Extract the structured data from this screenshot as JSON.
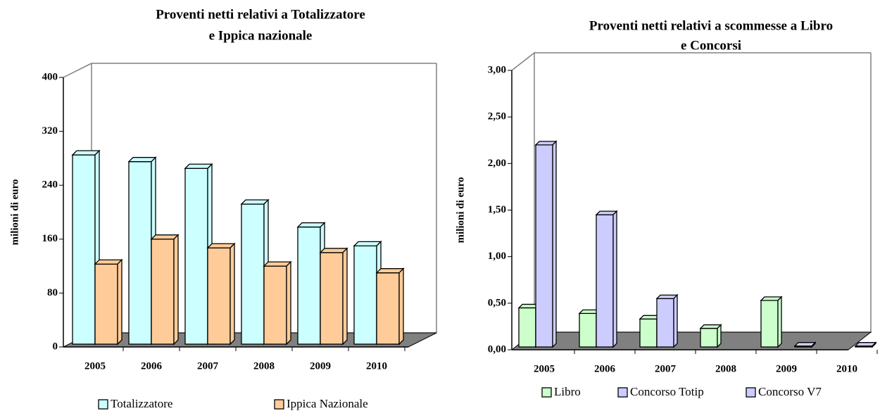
{
  "chart_data": [
    {
      "type": "bar3d",
      "title": [
        "Proventi netti relativi a Totalizzatore",
        "e Ippica nazionale"
      ],
      "y_label": "milioni di euro",
      "categories": [
        "2005",
        "2006",
        "2007",
        "2008",
        "2009",
        "2010"
      ],
      "series": [
        {
          "name": "Totalizzatore",
          "color": "#ccffff",
          "values": [
            285,
            275,
            265,
            212,
            178,
            150
          ]
        },
        {
          "name": "Ippica Nazionale",
          "color": "#ffcc99",
          "values": [
            123,
            160,
            147,
            120,
            140,
            110
          ]
        }
      ],
      "ylim": [
        0,
        400
      ],
      "yticks": [
        0,
        80,
        160,
        240,
        320,
        400
      ],
      "legend": "bottom"
    },
    {
      "type": "bar3d",
      "title": [
        "Proventi netti relativi a scommesse a Libro",
        "e Concorsi"
      ],
      "y_label": "milioni di euro",
      "categories": [
        "2005",
        "2006",
        "2007",
        "2008",
        "2009",
        "2010"
      ],
      "series": [
        {
          "name": "Libro",
          "color": "#ccffcc",
          "values": [
            0.45,
            0.39,
            0.33,
            0.23,
            0.53,
            null
          ]
        },
        {
          "name": "Concorso Totip",
          "color": "#ccccff",
          "values": [
            2.2,
            1.45,
            0.55,
            null,
            null,
            null
          ]
        },
        {
          "name": "Concorso V7",
          "color": "#ccccff",
          "values": [
            null,
            null,
            null,
            null,
            0.04,
            0.04
          ]
        }
      ],
      "ylim": [
        0,
        3
      ],
      "yticks": [
        {
          "value": 0,
          "label": "0,00"
        },
        {
          "value": 0.5,
          "label": "0,50"
        },
        {
          "value": 1,
          "label": "1,00"
        },
        {
          "value": 1.5,
          "label": "1,50"
        },
        {
          "value": 2,
          "label": "2,00"
        },
        {
          "value": 2.5,
          "label": "2,50"
        },
        {
          "value": 3,
          "label": "3,00"
        }
      ],
      "legend": "bottom"
    }
  ]
}
